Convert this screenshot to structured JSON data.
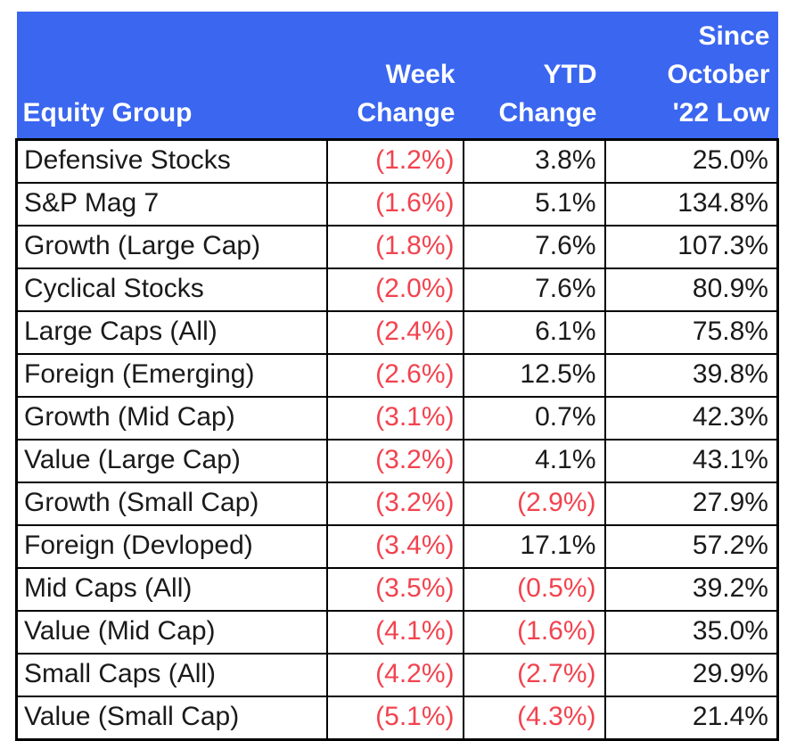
{
  "colors": {
    "header_bg": "#3A66F0",
    "header_text": "#FFFFFF",
    "text": "#1A1A1A",
    "negative": "#F2434F",
    "border": "#000000",
    "body_bg": "#FFFFFF"
  },
  "table": {
    "columns": [
      {
        "key": "group",
        "align": "left",
        "label": "Equity Group",
        "lines": [
          "Equity Group"
        ]
      },
      {
        "key": "week",
        "align": "right",
        "label": "Week Change",
        "lines": [
          "Week",
          "Change"
        ]
      },
      {
        "key": "ytd",
        "align": "right",
        "label": "YTD Change",
        "lines": [
          "YTD",
          "Change"
        ]
      },
      {
        "key": "since_low",
        "align": "right",
        "label": "Since October '22 Low",
        "lines": [
          "Since",
          "October",
          "'22 Low"
        ]
      }
    ],
    "rows": [
      {
        "group": "Defensive Stocks",
        "week": "(1.2%)",
        "ytd": "3.8%",
        "since_low": "25.0%"
      },
      {
        "group": "S&P Mag 7",
        "week": "(1.6%)",
        "ytd": "5.1%",
        "since_low": "134.8%"
      },
      {
        "group": "Growth (Large Cap)",
        "week": "(1.8%)",
        "ytd": "7.6%",
        "since_low": "107.3%"
      },
      {
        "group": "Cyclical Stocks",
        "week": "(2.0%)",
        "ytd": "7.6%",
        "since_low": "80.9%"
      },
      {
        "group": "Large Caps (All)",
        "week": "(2.4%)",
        "ytd": "6.1%",
        "since_low": "75.8%"
      },
      {
        "group": "Foreign (Emerging)",
        "week": "(2.6%)",
        "ytd": "12.5%",
        "since_low": "39.8%"
      },
      {
        "group": "Growth (Mid Cap)",
        "week": "(3.1%)",
        "ytd": "0.7%",
        "since_low": "42.3%"
      },
      {
        "group": "Value (Large Cap)",
        "week": "(3.2%)",
        "ytd": "4.1%",
        "since_low": "43.1%"
      },
      {
        "group": "Growth (Small Cap)",
        "week": "(3.2%)",
        "ytd": "(2.9%)",
        "since_low": "27.9%"
      },
      {
        "group": "Foreign (Devloped)",
        "week": "(3.4%)",
        "ytd": "17.1%",
        "since_low": "57.2%"
      },
      {
        "group": "Mid Caps (All)",
        "week": "(3.5%)",
        "ytd": "(0.5%)",
        "since_low": "39.2%"
      },
      {
        "group": "Value (Mid Cap)",
        "week": "(4.1%)",
        "ytd": "(1.6%)",
        "since_low": "35.0%"
      },
      {
        "group": "Small Caps (All)",
        "week": "(4.2%)",
        "ytd": "(2.7%)",
        "since_low": "29.9%"
      },
      {
        "group": "Value (Small Cap)",
        "week": "(5.1%)",
        "ytd": "(4.3%)",
        "since_low": "21.4%"
      }
    ]
  },
  "chart_data": {
    "type": "table",
    "title": "Equity group performance",
    "columns": [
      "Equity Group",
      "Week Change",
      "YTD Change",
      "Since October '22 Low"
    ],
    "units": "percent",
    "negative_style": "red text with parentheses",
    "rows": [
      [
        "Defensive Stocks",
        -1.2,
        3.8,
        25.0
      ],
      [
        "S&P Mag 7",
        -1.6,
        5.1,
        134.8
      ],
      [
        "Growth (Large Cap)",
        -1.8,
        7.6,
        107.3
      ],
      [
        "Cyclical Stocks",
        -2.0,
        7.6,
        80.9
      ],
      [
        "Large Caps (All)",
        -2.4,
        6.1,
        75.8
      ],
      [
        "Foreign (Emerging)",
        -2.6,
        12.5,
        39.8
      ],
      [
        "Growth (Mid Cap)",
        -3.1,
        0.7,
        42.3
      ],
      [
        "Value (Large Cap)",
        -3.2,
        4.1,
        43.1
      ],
      [
        "Growth (Small Cap)",
        -3.2,
        -2.9,
        27.9
      ],
      [
        "Foreign (Devloped)",
        -3.4,
        17.1,
        57.2
      ],
      [
        "Mid Caps (All)",
        -3.5,
        -0.5,
        39.2
      ],
      [
        "Value (Mid Cap)",
        -4.1,
        -1.6,
        35.0
      ],
      [
        "Small Caps (All)",
        -4.2,
        -2.7,
        29.9
      ],
      [
        "Value (Small Cap)",
        -5.1,
        -4.3,
        21.4
      ]
    ]
  }
}
